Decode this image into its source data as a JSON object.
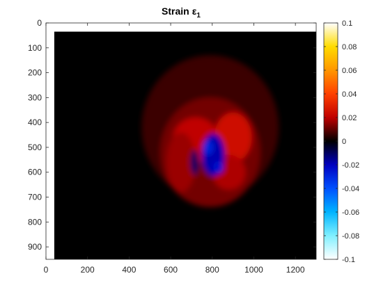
{
  "chart_data": {
    "type": "heatmap",
    "title": "Strain",
    "title_symbol": "ε",
    "title_subscript": "1",
    "xlabel": "",
    "ylabel": "",
    "xlim": [
      0,
      1300
    ],
    "ylim": [
      950,
      0
    ],
    "y_reversed": true,
    "x_ticks": [
      0,
      200,
      400,
      600,
      800,
      1000,
      1200
    ],
    "y_ticks": [
      0,
      100,
      200,
      300,
      400,
      500,
      600,
      700,
      800,
      900
    ],
    "data_extent": {
      "x": [
        40,
        1300
      ],
      "y": [
        35,
        950
      ]
    },
    "background_value": 0,
    "colorbar": {
      "range": [
        -0.1,
        0.1
      ],
      "ticks": [
        0.1,
        0.08,
        0.06,
        0.04,
        0.02,
        0,
        -0.02,
        -0.04,
        -0.06,
        -0.08,
        -0.1
      ],
      "tick_labels": [
        "0.1",
        "0.08",
        "0.06",
        "0.04",
        "0.02",
        "0",
        "-0.02",
        "-0.04",
        "-0.06",
        "-0.08",
        "-0.1"
      ],
      "colormap": [
        {
          "v": -0.1,
          "color": "#ffffff"
        },
        {
          "v": -0.08,
          "color": "#80f0ff"
        },
        {
          "v": -0.06,
          "color": "#00b4ff"
        },
        {
          "v": -0.04,
          "color": "#0050ff"
        },
        {
          "v": -0.02,
          "color": "#0000c0"
        },
        {
          "v": 0.0,
          "color": "#000000"
        },
        {
          "v": 0.02,
          "color": "#c00000"
        },
        {
          "v": 0.04,
          "color": "#ff4000"
        },
        {
          "v": 0.06,
          "color": "#ff9600"
        },
        {
          "v": 0.08,
          "color": "#ffdc00"
        },
        {
          "v": 0.1,
          "color": "#ffffff"
        }
      ]
    },
    "features": [
      {
        "kind": "positive-lobe",
        "cx": 790,
        "cy": 420,
        "rx": 330,
        "ry": 290,
        "value": 0.006
      },
      {
        "kind": "positive-lobe",
        "cx": 790,
        "cy": 520,
        "rx": 240,
        "ry": 220,
        "value": 0.012
      },
      {
        "kind": "positive-lobe",
        "cx": 720,
        "cy": 470,
        "rx": 110,
        "ry": 90,
        "value": 0.02
      },
      {
        "kind": "positive-lobe",
        "cx": 900,
        "cy": 460,
        "rx": 90,
        "ry": 100,
        "value": 0.024
      },
      {
        "kind": "positive-lobe",
        "cx": 650,
        "cy": 560,
        "rx": 70,
        "ry": 120,
        "value": 0.016
      },
      {
        "kind": "positive-lobe",
        "cx": 880,
        "cy": 600,
        "rx": 80,
        "ry": 70,
        "value": 0.018
      },
      {
        "kind": "negative-core",
        "cx": 805,
        "cy": 530,
        "rx": 55,
        "ry": 85,
        "value": -0.018
      },
      {
        "kind": "negative-core",
        "cx": 780,
        "cy": 500,
        "rx": 25,
        "ry": 30,
        "value": -0.028
      },
      {
        "kind": "negative-core",
        "cx": 830,
        "cy": 580,
        "rx": 25,
        "ry": 25,
        "value": -0.024
      },
      {
        "kind": "negative-core",
        "cx": 715,
        "cy": 560,
        "rx": 20,
        "ry": 50,
        "value": -0.01
      }
    ]
  }
}
